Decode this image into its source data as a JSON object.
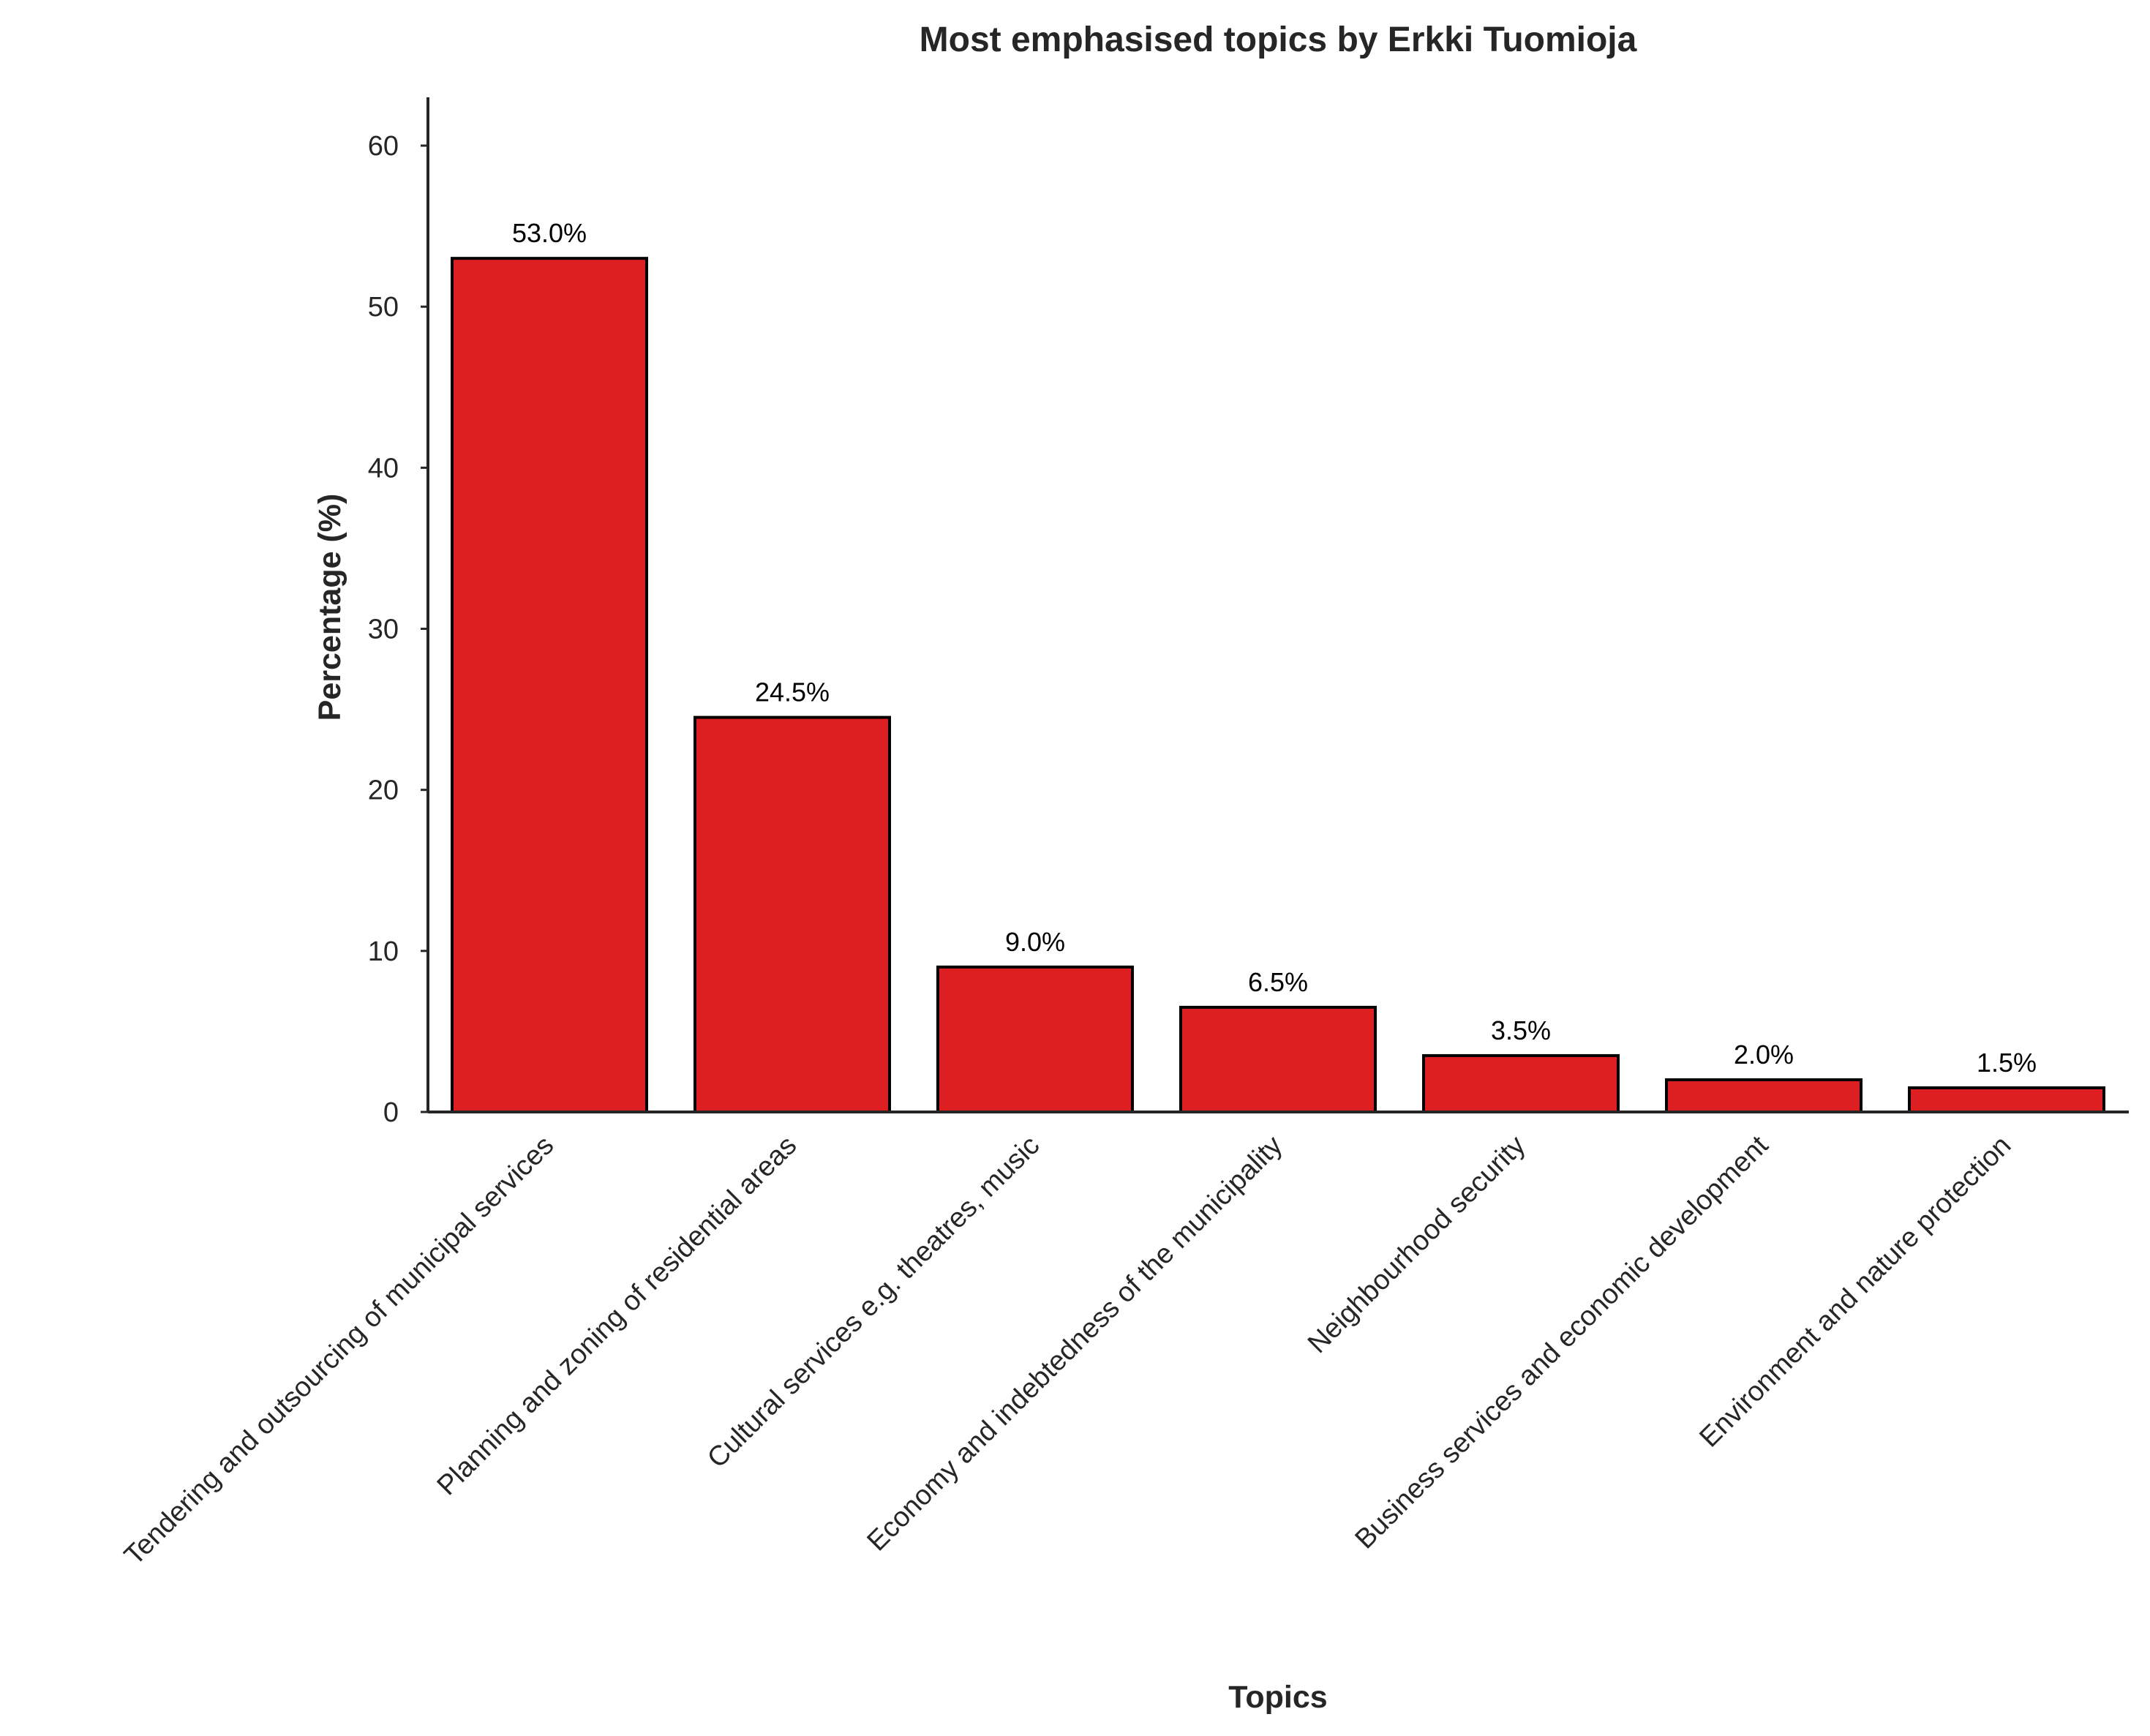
{
  "chart_data": {
    "type": "bar",
    "title": "Most emphasised topics by Erkki Tuomioja",
    "xlabel": "Topics",
    "ylabel": "Percentage (%)",
    "categories": [
      "Tendering and outsourcing of municipal services",
      "Planning and zoning of residential areas",
      "Cultural services e.g. theatres, music",
      "Economy and indebtedness of the municipality",
      "Neighbourhood security",
      "Business services and economic development",
      "Environment and nature protection"
    ],
    "values": [
      53.0,
      24.5,
      9.0,
      6.5,
      3.5,
      2.0,
      1.5
    ],
    "data_labels": [
      "53.0%",
      "24.5%",
      "9.0%",
      "6.5%",
      "3.5%",
      "2.0%",
      "1.5%"
    ],
    "yticks": [
      0,
      10,
      20,
      30,
      40,
      50,
      60
    ],
    "ytick_labels": [
      "0",
      "10",
      "20",
      "30",
      "40",
      "50",
      "60"
    ],
    "ylim": [
      0,
      63
    ],
    "grid": false,
    "legend": "none",
    "bar_color": "#de1f21",
    "edge_color": "#000000",
    "x_tick_rotation": 45
  }
}
